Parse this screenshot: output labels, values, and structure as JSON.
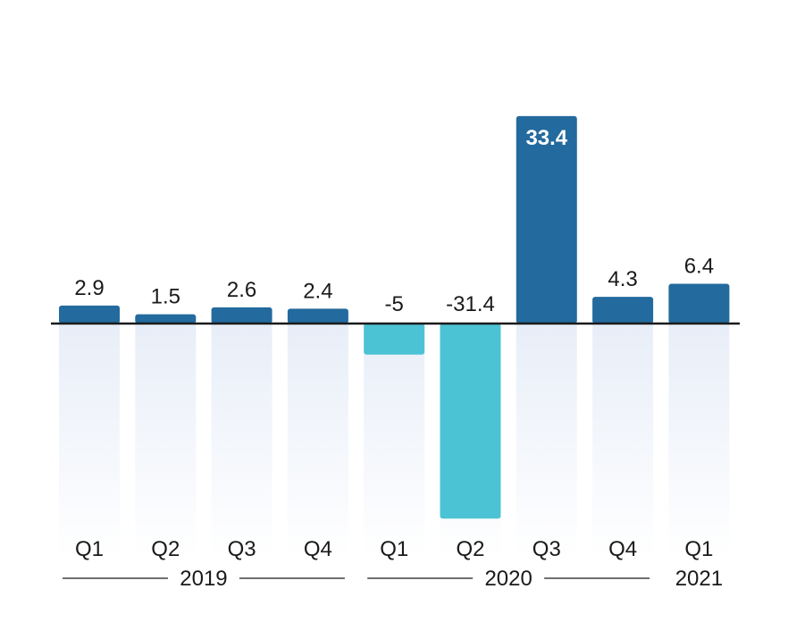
{
  "chart_data": {
    "type": "bar",
    "title": "",
    "xlabel": "",
    "ylabel": "",
    "categories": [
      "Q1",
      "Q2",
      "Q3",
      "Q4",
      "Q1",
      "Q2",
      "Q3",
      "Q4",
      "Q1"
    ],
    "groups": [
      {
        "label": "2019",
        "start": 0,
        "end": 3
      },
      {
        "label": "2020",
        "start": 4,
        "end": 7
      },
      {
        "label": "2021",
        "start": 8,
        "end": 8
      }
    ],
    "values": [
      2.9,
      1.5,
      2.6,
      2.4,
      -5,
      -31.4,
      33.4,
      4.3,
      6.4
    ],
    "value_labels": [
      "2.9",
      "1.5",
      "2.6",
      "2.4",
      "-5",
      "-31.4",
      "33.4",
      "4.3",
      "6.4"
    ],
    "ylim": [
      -31.4,
      33.4
    ],
    "grid": false,
    "legend": "none",
    "colors": {
      "positive": "#236a9e",
      "negative": "#4cc3d4",
      "background_column_top": "#e8eef8",
      "background_column_bottom": "#ffffff",
      "baseline": "#1a1a1a",
      "text": "#1a1a1a",
      "inside_label": "#ffffff"
    }
  }
}
